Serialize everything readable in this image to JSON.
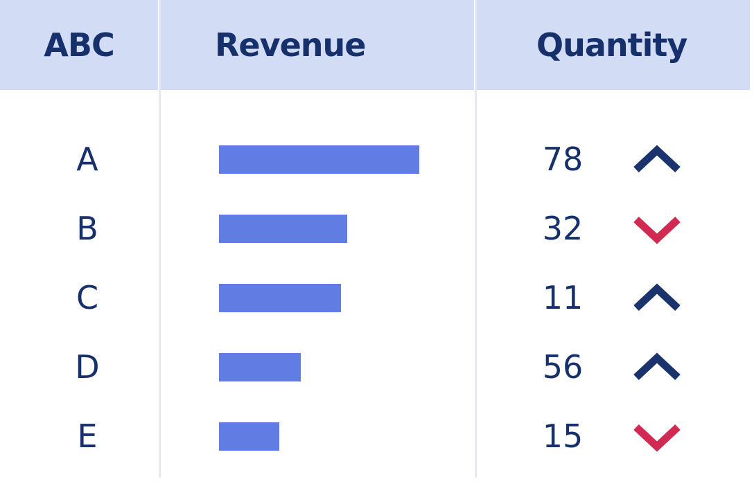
{
  "header": {
    "col1": "ABC",
    "col2": "Revenue",
    "col3": "Quantity"
  },
  "colors": {
    "header_bg": "#d2ddf5",
    "text": "#16306b",
    "bar": "#5f7de3",
    "trend_up": "#1b336d",
    "trend_down": "#d02a52"
  },
  "chart_data": {
    "type": "table",
    "columns": [
      "ABC",
      "Revenue",
      "Quantity"
    ],
    "rows": [
      {
        "label": "A",
        "revenue": 1.0,
        "quantity": "78",
        "trend": "up"
      },
      {
        "label": "B",
        "revenue": 0.64,
        "quantity": "32",
        "trend": "down"
      },
      {
        "label": "C",
        "revenue": 0.61,
        "quantity": "11",
        "trend": "up"
      },
      {
        "label": "D",
        "revenue": 0.41,
        "quantity": "56",
        "trend": "up"
      },
      {
        "label": "E",
        "revenue": 0.3,
        "quantity": "15",
        "trend": "down"
      }
    ]
  }
}
